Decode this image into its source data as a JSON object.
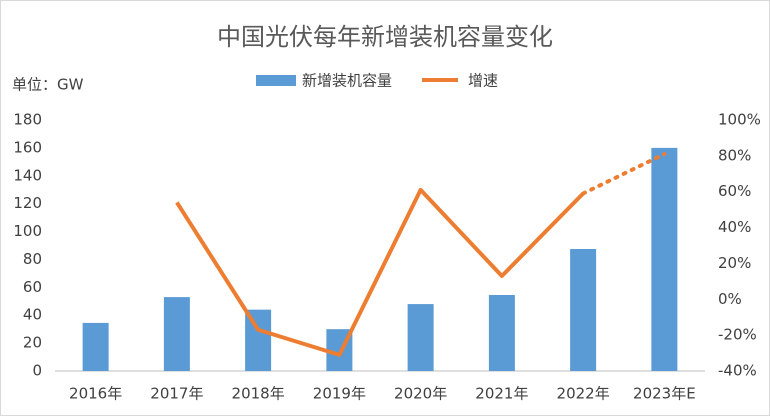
{
  "chart_data": {
    "type": "bar-line",
    "title": "中国光伏每年新增装机容量变化",
    "unit_label": "单位：GW",
    "categories": [
      "2016年",
      "2017年",
      "2018年",
      "2019年",
      "2020年",
      "2021年",
      "2022年",
      "2023年E"
    ],
    "series": [
      {
        "name": "新增装机容量",
        "type": "bar",
        "color": "#5b9bd5",
        "values": [
          34.5,
          53,
          44,
          30,
          48,
          54.5,
          87.5,
          160
        ]
      },
      {
        "name": "增速",
        "type": "line",
        "axis": "y2",
        "color": "#ed7d31",
        "values": [
          null,
          54,
          -17,
          -31,
          61,
          13,
          59,
          81
        ],
        "dotted_from_index": 6
      }
    ],
    "ylim": [
      0,
      180
    ],
    "yticks": [
      0,
      20,
      40,
      60,
      80,
      100,
      120,
      140,
      160,
      180
    ],
    "y2lim": [
      -40,
      100
    ],
    "y2ticks": [
      {
        "value": -40,
        "label": "-40%"
      },
      {
        "value": -20,
        "label": "-20%"
      },
      {
        "value": 0,
        "label": "0%"
      },
      {
        "value": 20,
        "label": "20%"
      },
      {
        "value": 40,
        "label": "40%"
      },
      {
        "value": 60,
        "label": "60%"
      },
      {
        "value": 80,
        "label": "80%"
      },
      {
        "value": 100,
        "label": "100%"
      }
    ],
    "grid": false
  }
}
